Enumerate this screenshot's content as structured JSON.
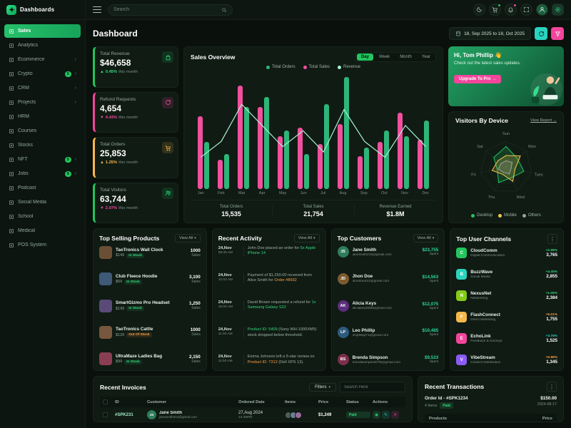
{
  "app": {
    "logo_text": "Dashboards"
  },
  "colors": {
    "accent_green": "#22c55e",
    "pink": "#f2459b",
    "teal": "#29d3c0",
    "yellow": "#f5b849",
    "orange": "#ff9f43",
    "mint_line": "#a7f3d0"
  },
  "header": {
    "search_placeholder": "Search",
    "icons": {
      "menu": "hamburger-icon",
      "search": "search-icon",
      "theme": "moon-icon",
      "cart": "cart-icon",
      "notifications": "bell-icon",
      "fullscreen": "expand-icon",
      "profile": "avatar",
      "settings": "gear-icon"
    }
  },
  "sidebar": {
    "items": [
      {
        "label": "Sales",
        "icon": "sales-icon",
        "active": "true"
      },
      {
        "label": "Analytics",
        "icon": "analytics-icon"
      },
      {
        "label": "Ecommerce",
        "icon": "ecommerce-icon",
        "chev": "›"
      },
      {
        "label": "Crypto",
        "icon": "crypto-icon",
        "badge": "5",
        "chev": "›"
      },
      {
        "label": "CRM",
        "icon": "crm-icon",
        "chev": "›"
      },
      {
        "label": "Projects",
        "icon": "projects-icon",
        "chev": "›"
      },
      {
        "label": "HRM",
        "icon": "hrm-icon"
      },
      {
        "label": "Courses",
        "icon": "courses-icon"
      },
      {
        "label": "Stocks",
        "icon": "stocks-icon"
      },
      {
        "label": "NFT",
        "icon": "nft-icon",
        "badge": "5",
        "chev": "›"
      },
      {
        "label": "Jobs",
        "icon": "jobs-icon",
        "badge": "9",
        "chev": "›"
      },
      {
        "label": "Podcast",
        "icon": "podcast-icon"
      },
      {
        "label": "Social Media",
        "icon": "social-media-icon"
      },
      {
        "label": "School",
        "icon": "school-icon"
      },
      {
        "label": "Medical",
        "icon": "medical-icon"
      },
      {
        "label": "POS System",
        "icon": "pos-system-icon"
      }
    ]
  },
  "page": {
    "title": "Dashboard",
    "date_range": "18, Sep 2025 to 18, Oct 2025"
  },
  "stats": [
    {
      "label": "Total Revenue",
      "value": "$46,658",
      "arrow": "▲",
      "trend": "0.45%",
      "trend_suffix": "this month",
      "variant": "green",
      "trend_variant": "green"
    },
    {
      "label": "Refund Requests",
      "value": "4,654",
      "arrow": "▼",
      "trend": "4.43%",
      "trend_suffix": "this month",
      "variant": "pink",
      "trend_variant": "red"
    },
    {
      "label": "Total Orders",
      "value": "25,853",
      "arrow": "▲",
      "trend": "1.25%",
      "trend_suffix": "this month",
      "variant": "yellow",
      "trend_variant": "yellow"
    },
    {
      "label": "Total Visitors",
      "value": "63,744",
      "arrow": "▼",
      "trend": "2.07%",
      "trend_suffix": "this month",
      "variant": "green",
      "trend_variant": "red"
    }
  ],
  "sales": {
    "title": "Sales Overview",
    "tabs": [
      {
        "label": "Day",
        "active": "true"
      },
      {
        "label": "Week"
      },
      {
        "label": "Month"
      },
      {
        "label": "Year"
      }
    ],
    "summary": [
      {
        "label": "Total Orders",
        "value": "15,535"
      },
      {
        "label": "Total Sales",
        "value": "21,754"
      },
      {
        "label": "Revenue Earned",
        "value": "$1.8M"
      }
    ]
  },
  "greeting": {
    "title": "Hi, Tom Phillip",
    "wave": "👋",
    "subtitle": "Check out the latest sales updates.",
    "cta": "Upgrade To Pro →"
  },
  "visitors": {
    "title": "Visitors By Device",
    "link": "View Report →"
  },
  "products": {
    "title": "Top Selling Products",
    "view_all": "View All",
    "unit": "Sales",
    "items": [
      {
        "name": "TaoTronics Wall Clock",
        "price": "$149",
        "sales": "1000",
        "stock": "In Stock",
        "stock_variant": "in",
        "color": "#6b4f35"
      },
      {
        "name": "Club Fleece Hoodie",
        "price": "$59",
        "sales": "3,100",
        "stock": "In Stock",
        "stock_variant": "in",
        "color": "#3e5a77"
      },
      {
        "name": "SmartGizmo Pro Headset",
        "price": "$199",
        "sales": "1,250",
        "stock": "In Stock",
        "stock_variant": "in",
        "color": "#5a4a78"
      },
      {
        "name": "TaoTronics Cattle",
        "price": "$129",
        "sales": "1000",
        "stock": "Out Of Stock",
        "stock_variant": "out",
        "color": "#77573e"
      },
      {
        "name": "UltraMaze Ladies Bag",
        "price": "$99",
        "sales": "2,150",
        "stock": "In Stock",
        "stock_variant": "in",
        "color": "#8a3e55"
      }
    ]
  },
  "activity": {
    "title": "Recent Activity",
    "view_all": "View All",
    "items": [
      {
        "date": "24,Nov",
        "time": "08:45 AM",
        "pre": "John Doe placed an order for ",
        "link": "5x Apple iPhone 14",
        "post": "",
        "link_variant": "green"
      },
      {
        "date": "24,Nov",
        "time": "10:02 AM",
        "pre": "Payment of $1,250.00 received from Alice Smith for ",
        "link": "Order #8932",
        "post": "",
        "link_variant": "orange"
      },
      {
        "date": "24,Nov",
        "time": "10:00 AM",
        "pre": "David Brown requested a refund for ",
        "link": "1x Samsung Galaxy S22",
        "post": "",
        "link_variant": "green"
      },
      {
        "date": "24,Nov",
        "time": "11:30 AM",
        "pre": "",
        "link": "Product ID: 5409",
        "post": " (Sony WH-1000XM5) stock dropped below threshold.",
        "link_variant": "green"
      },
      {
        "date": "24,Nov",
        "time": "11:50 AM",
        "pre": "Emma Johnson left a 5-star review on ",
        "link": "Product ID: 7312",
        "post": " (Dell XPS 13).",
        "link_variant": "orange"
      }
    ]
  },
  "customers": {
    "title": "Top Customers",
    "view_all": "View All",
    "spent_label": "Spent",
    "items": [
      {
        "name": "Jane Smith",
        "email": "janesmith215@gmail.com",
        "amount": "$23,755",
        "initials": "JS",
        "color": "#2e7d5b"
      },
      {
        "name": "Jhon Doe",
        "email": "jhondoe431@gmail.com",
        "amount": "$14,563",
        "initials": "JD",
        "color": "#7d5b2e"
      },
      {
        "name": "Alicia Keys",
        "email": "aliciakeys985@gmail.com",
        "amount": "$12,075",
        "initials": "AK",
        "color": "#5b2e7d"
      },
      {
        "name": "Leo Phillip",
        "email": "leophillip71@gmail.com",
        "amount": "$10,485",
        "initials": "LP",
        "color": "#2e5b7d"
      },
      {
        "name": "Brenda Simpson",
        "email": "brendasimpson075@gmail.com",
        "amount": "$9,533",
        "initials": "BS",
        "color": "#7d2e4a"
      }
    ]
  },
  "channels": {
    "title": "Top User Channels",
    "items": [
      {
        "name": "CloudComm",
        "category": "Digital Communication",
        "change": "+2.98%",
        "value": "3,765",
        "initial": "C",
        "color": "#22c55e",
        "change_variant": "green"
      },
      {
        "name": "BuzzWave",
        "category": "Social Media",
        "change": "+4.45%",
        "value": "2,855",
        "initial": "B",
        "color": "#29d3c0",
        "change_variant": "green"
      },
      {
        "name": "NexusNet",
        "category": "Networking",
        "change": "+1.05%",
        "value": "2,384",
        "initial": "N",
        "color": "#84cc16",
        "change_variant": "green"
      },
      {
        "name": "FlashConnect",
        "category": "Direct Marketing",
        "change": "+5.01%",
        "value": "1,755",
        "initial": "F",
        "color": "#f5b849",
        "change_variant": "orange"
      },
      {
        "name": "EchoLink",
        "category": "Feedback & Surveys",
        "change": "+3.78%",
        "value": "1,525",
        "initial": "E",
        "color": "#f2459b",
        "change_variant": "teal"
      },
      {
        "name": "VibeStream",
        "category": "Content Distribution",
        "change": "+0.98%",
        "value": "1,345",
        "initial": "V",
        "color": "#8b5cf6",
        "change_variant": "orange"
      }
    ]
  },
  "invoices": {
    "title": "Recent Invoices",
    "filters": "Filters",
    "search_placeholder": "Search Here",
    "columns": [
      {
        "label": "ID"
      },
      {
        "label": "Customer"
      },
      {
        "label": "Ordered Date"
      },
      {
        "label": "Items"
      },
      {
        "label": "Price"
      },
      {
        "label": "Status"
      },
      {
        "label": "Actions"
      }
    ],
    "row": {
      "id": "#SPK231",
      "customer": "Jane Smith",
      "email": "janesmith213@gmail.com",
      "initials": "JS",
      "date": "27,Aug 2024",
      "time": "12:45PM",
      "price": "$1,249",
      "status": "Paid"
    }
  },
  "transactions": {
    "title": "Recent Transactions",
    "order_id": "Order Id - #SPK1234",
    "items": "4 Items",
    "status": "Paid",
    "price": "$150.00",
    "date": "2024-08-17",
    "col_products": "Products",
    "col_price": "Price"
  },
  "chart_data": [
    {
      "type": "bar",
      "title": "Sales Overview",
      "categories": [
        "Jan",
        "Feb",
        "Mar",
        "Apr",
        "May",
        "Jun",
        "Jul",
        "Aug",
        "Sep",
        "Oct",
        "Nov",
        "Dec"
      ],
      "series": [
        {
          "name": "Total Orders",
          "type": "bar",
          "color": "#2eb579",
          "values": [
            40,
            30,
            70,
            78,
            50,
            30,
            72,
            95,
            35,
            50,
            45,
            58
          ]
        },
        {
          "name": "Total Sales",
          "type": "bar",
          "color": "#f24f9e",
          "values": [
            62,
            25,
            88,
            70,
            45,
            52,
            38,
            55,
            28,
            40,
            65,
            42
          ]
        },
        {
          "name": "Revenue",
          "type": "line",
          "color": "#a7f3d0",
          "values": [
            30,
            45,
            80,
            60,
            40,
            55,
            35,
            75,
            45,
            30,
            60,
            40
          ]
        }
      ],
      "ylim": [
        0,
        100
      ],
      "grid": false,
      "legend_position": "top",
      "footer_totals": {
        "Total Orders": "15,535",
        "Total Sales": "21,754",
        "Revenue Earned": "$1.8M"
      }
    },
    {
      "type": "radar",
      "title": "Visitors By Device",
      "axes": [
        "Sun",
        "Mon",
        "Tues",
        "Wed",
        "Thu",
        "Fri",
        "Sat"
      ],
      "max": 100,
      "series": [
        {
          "name": "Desktop",
          "color": "#22c55e",
          "values": [
            80,
            55,
            70,
            45,
            65,
            35,
            60
          ]
        },
        {
          "name": "Mobile",
          "color": "#f5c84b",
          "values": [
            45,
            70,
            35,
            60,
            30,
            55,
            40
          ]
        },
        {
          "name": "Others",
          "color": "#9aa5a0",
          "values": [
            25,
            30,
            20,
            28,
            22,
            30,
            24
          ]
        }
      ],
      "legend_position": "bottom"
    }
  ]
}
